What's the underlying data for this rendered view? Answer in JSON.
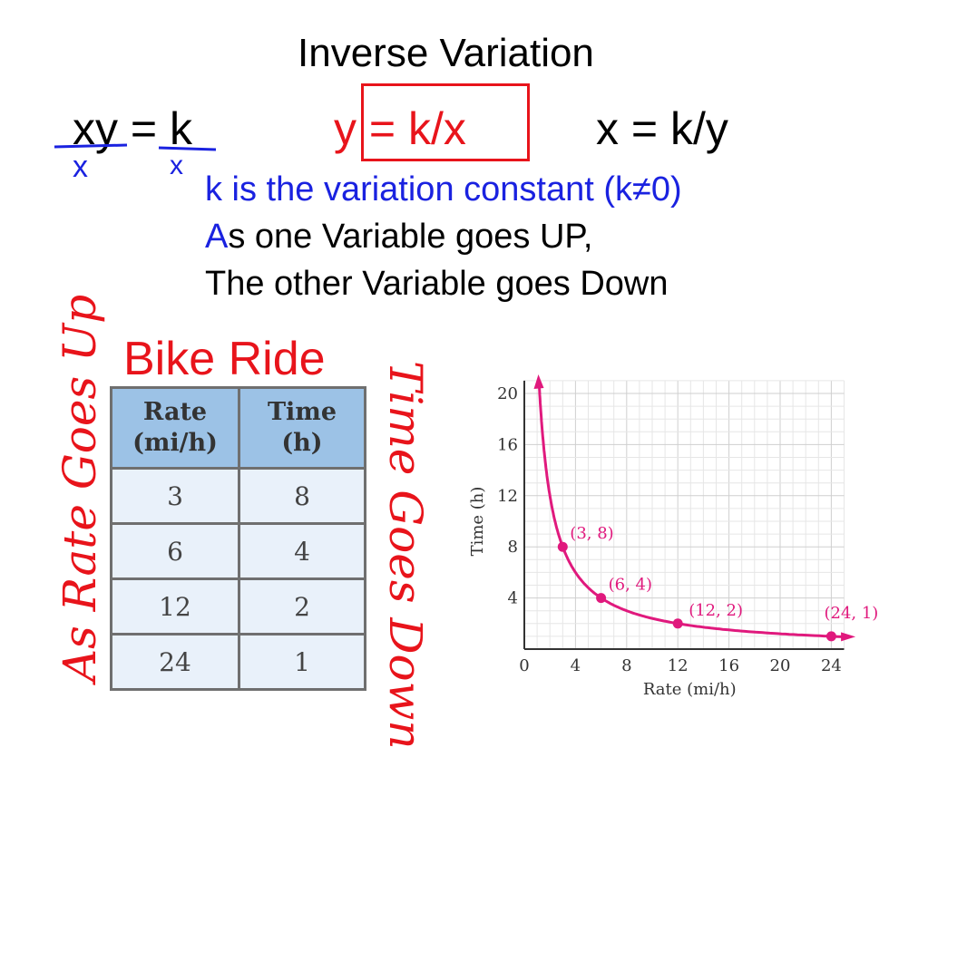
{
  "title": "Inverse Variation",
  "equations": {
    "eq1": "xy = k",
    "eq2": "y = k/x",
    "eq3": "x = k/y"
  },
  "handwritten_marks": [
    "x",
    "x"
  ],
  "notes": {
    "line1": "k is the variation constant (k≠0)",
    "line2_first": "A",
    "line2_rest": "s one Variable goes UP,",
    "line3": "The other Variable goes Down"
  },
  "table": {
    "title": "Bike Ride",
    "headers": [
      [
        "Rate",
        "(mi/h)"
      ],
      [
        "Time",
        "(h)"
      ]
    ],
    "rows": [
      [
        "3",
        "8"
      ],
      [
        "6",
        "4"
      ],
      [
        "12",
        "2"
      ],
      [
        "24",
        "1"
      ]
    ]
  },
  "handwriting": {
    "left": "As Rate Goes Up",
    "right": "Time Goes Down"
  },
  "colors": {
    "red": "#e8141b",
    "blue": "#1a22e0",
    "curve": "#e0197d",
    "header_fill": "#9cc2e6"
  },
  "chart_data": {
    "type": "line",
    "xlabel": "Rate (mi/h)",
    "ylabel": "Time (h)",
    "x_ticks": [
      "0",
      "4",
      "8",
      "12",
      "16",
      "20",
      "24"
    ],
    "y_ticks": [
      "4",
      "8",
      "12",
      "16",
      "20"
    ],
    "xlim": [
      0,
      25
    ],
    "ylim": [
      0,
      21
    ],
    "grid": true,
    "function": "y = 24/x",
    "points": [
      {
        "x": 3,
        "y": 8,
        "label": "(3, 8)"
      },
      {
        "x": 6,
        "y": 4,
        "label": "(6, 4)"
      },
      {
        "x": 12,
        "y": 2,
        "label": "(12, 2)"
      },
      {
        "x": 24,
        "y": 1,
        "label": "(24, 1)"
      }
    ]
  }
}
